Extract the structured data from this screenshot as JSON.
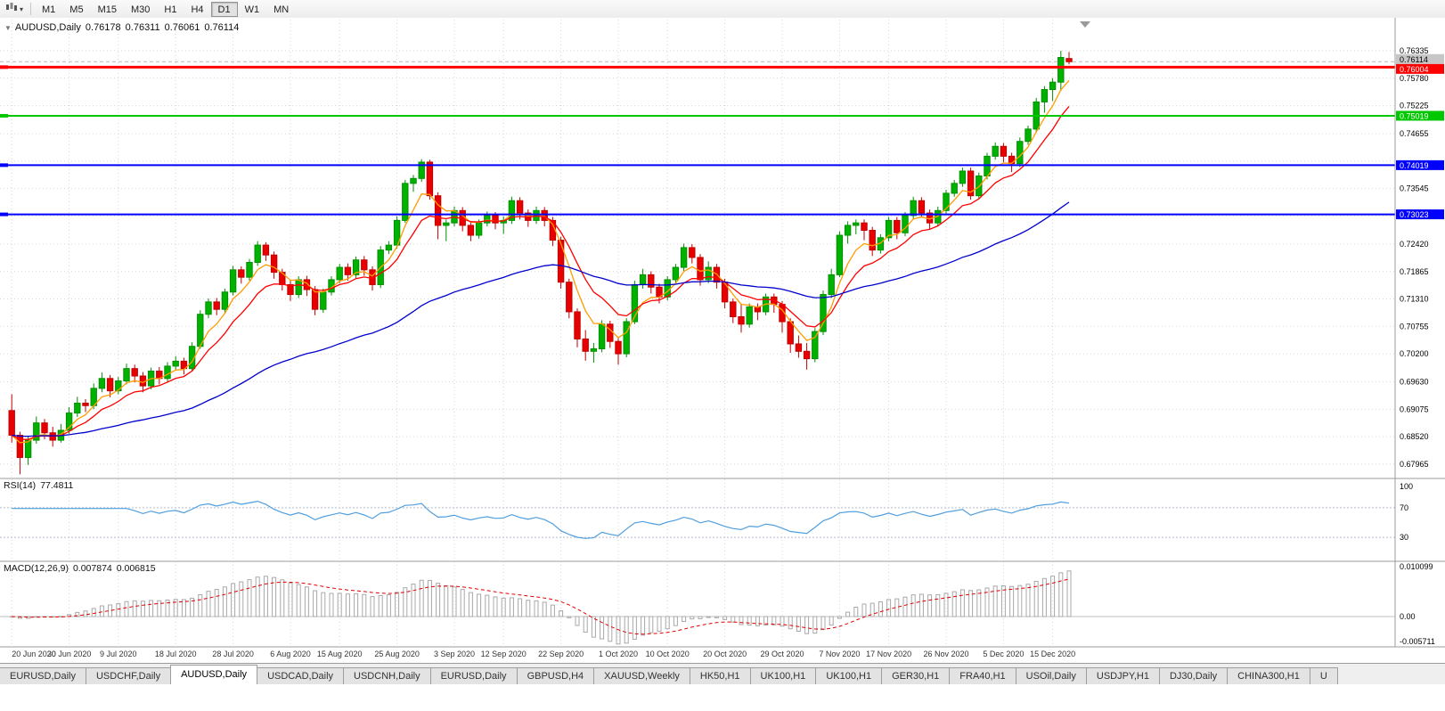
{
  "toolbar": {
    "timeframes": [
      "M1",
      "M5",
      "M15",
      "M30",
      "H1",
      "H4",
      "D1",
      "W1",
      "MN"
    ],
    "active_timeframe": "D1"
  },
  "chart_data": {
    "type": "candlestick",
    "title": {
      "toggle_icon": "▼",
      "symbol": "AUDUSD,Daily",
      "open": "0.76178",
      "high": "0.76311",
      "low": "0.76061",
      "close": "0.76114"
    },
    "colors": {
      "bull": "#00b200",
      "bull_stroke": "#008f00",
      "bear": "#e80000",
      "bear_stroke": "#bf0000",
      "grid": "#d6d6d6",
      "separator": "#9b9b9b",
      "current_price_line": "#b8b8b8",
      "rsi_line": "#4f9ede",
      "macd_bar": "#a8a8a8",
      "macd_signal": "#e00000"
    },
    "price_axis": {
      "min": 0.67965,
      "max": 0.76335,
      "labels": [
        "0.76335",
        "0.75780",
        "0.75225",
        "0.74655",
        "0.73545",
        "0.72990",
        "0.72420",
        "0.71865",
        "0.71310",
        "0.70755",
        "0.70200",
        "0.69630",
        "0.69075",
        "0.68520",
        "0.67965"
      ],
      "hidden_grid_price": 0.741
    },
    "current_price": {
      "value": 0.76114,
      "label": "0.76114",
      "badge_bg": "#c6c6c6",
      "badge_text": "#000000"
    },
    "hlines": [
      {
        "price": 0.76004,
        "label": "0.76004",
        "color": "#ff0000",
        "width": 3
      },
      {
        "price": 0.75019,
        "label": "0.75019",
        "color": "#00c800",
        "width": 2
      },
      {
        "price": 0.74019,
        "label": "0.74019",
        "color": "#0000ff",
        "width": 2
      },
      {
        "price": 0.73023,
        "label": "0.73023",
        "color": "#0000ff",
        "width": 2
      }
    ],
    "moving_averages": [
      {
        "period": 5,
        "color": "#ff9c00"
      },
      {
        "period": 10,
        "color": "#ff0000"
      },
      {
        "period": 50,
        "color": "#0000cd"
      }
    ],
    "date_labels": [
      "20 Jun 2020",
      "30 Jun 2020",
      "9 Jul 2020",
      "18 Jul 2020",
      "28 Jul 2020",
      "6 Aug 2020",
      "15 Aug 2020",
      "25 Aug 2020",
      "3 Sep 2020",
      "12 Sep 2020",
      "22 Sep 2020",
      "1 Oct 2020",
      "10 Oct 2020",
      "20 Oct 2020",
      "29 Oct 2020",
      "7 Nov 2020",
      "17 Nov 2020",
      "26 Nov 2020",
      "5 Dec 2020",
      "15 Dec 2020"
    ],
    "label_indices": [
      0,
      7,
      13,
      20,
      27,
      34,
      40,
      47,
      54,
      60,
      67,
      74,
      80,
      87,
      94,
      101,
      107,
      114,
      121,
      127
    ],
    "candles": [
      [
        0.6905,
        0.6938,
        0.684,
        0.6855
      ],
      [
        0.6855,
        0.6862,
        0.6776,
        0.681
      ],
      [
        0.681,
        0.6852,
        0.6795,
        0.6845
      ],
      [
        0.6845,
        0.6893,
        0.6838,
        0.688
      ],
      [
        0.688,
        0.6888,
        0.6847,
        0.686
      ],
      [
        0.686,
        0.6872,
        0.6832,
        0.6845
      ],
      [
        0.6845,
        0.6878,
        0.684,
        0.6865
      ],
      [
        0.6865,
        0.6912,
        0.6858,
        0.69
      ],
      [
        0.69,
        0.6933,
        0.6892,
        0.692
      ],
      [
        0.692,
        0.6928,
        0.6902,
        0.6915
      ],
      [
        0.6915,
        0.696,
        0.6908,
        0.695
      ],
      [
        0.695,
        0.6982,
        0.6942,
        0.697
      ],
      [
        0.697,
        0.6977,
        0.6932,
        0.6945
      ],
      [
        0.6945,
        0.6973,
        0.6938,
        0.6965
      ],
      [
        0.6965,
        0.7,
        0.6958,
        0.699
      ],
      [
        0.699,
        0.6998,
        0.6962,
        0.6975
      ],
      [
        0.6975,
        0.6983,
        0.6942,
        0.6955
      ],
      [
        0.6955,
        0.6992,
        0.6948,
        0.6985
      ],
      [
        0.6985,
        0.6993,
        0.6958,
        0.697
      ],
      [
        0.697,
        0.7003,
        0.6962,
        0.6995
      ],
      [
        0.6995,
        0.7015,
        0.6988,
        0.7005
      ],
      [
        0.7005,
        0.7012,
        0.6978,
        0.699
      ],
      [
        0.699,
        0.7043,
        0.6984,
        0.7035
      ],
      [
        0.7035,
        0.7108,
        0.703,
        0.71
      ],
      [
        0.71,
        0.7132,
        0.7092,
        0.7125
      ],
      [
        0.7125,
        0.7133,
        0.7098,
        0.711
      ],
      [
        0.711,
        0.7152,
        0.7103,
        0.7145
      ],
      [
        0.7145,
        0.7198,
        0.7138,
        0.719
      ],
      [
        0.719,
        0.7197,
        0.7162,
        0.7175
      ],
      [
        0.7175,
        0.7212,
        0.7168,
        0.7205
      ],
      [
        0.7205,
        0.7248,
        0.7198,
        0.724
      ],
      [
        0.724,
        0.7246,
        0.7208,
        0.722
      ],
      [
        0.722,
        0.7227,
        0.7172,
        0.7185
      ],
      [
        0.7185,
        0.7192,
        0.7148,
        0.716
      ],
      [
        0.716,
        0.7168,
        0.7127,
        0.714
      ],
      [
        0.714,
        0.7177,
        0.7133,
        0.717
      ],
      [
        0.717,
        0.7178,
        0.7137,
        0.715
      ],
      [
        0.715,
        0.7157,
        0.7098,
        0.711
      ],
      [
        0.711,
        0.7152,
        0.7103,
        0.7145
      ],
      [
        0.7145,
        0.7177,
        0.7138,
        0.717
      ],
      [
        0.717,
        0.7202,
        0.7163,
        0.7195
      ],
      [
        0.7195,
        0.7203,
        0.7168,
        0.718
      ],
      [
        0.718,
        0.7217,
        0.7173,
        0.721
      ],
      [
        0.721,
        0.7218,
        0.7178,
        0.719
      ],
      [
        0.719,
        0.7197,
        0.7148,
        0.716
      ],
      [
        0.716,
        0.7238,
        0.7153,
        0.723
      ],
      [
        0.723,
        0.7248,
        0.7222,
        0.724
      ],
      [
        0.724,
        0.7298,
        0.7233,
        0.729
      ],
      [
        0.729,
        0.7372,
        0.7285,
        0.7365
      ],
      [
        0.7365,
        0.7382,
        0.7348,
        0.7375
      ],
      [
        0.7375,
        0.7414,
        0.7368,
        0.7408
      ],
      [
        0.7408,
        0.7413,
        0.7332,
        0.734
      ],
      [
        0.734,
        0.7347,
        0.7252,
        0.728
      ],
      [
        0.728,
        0.7292,
        0.7248,
        0.7285
      ],
      [
        0.7285,
        0.7318,
        0.7278,
        0.731
      ],
      [
        0.731,
        0.7317,
        0.7268,
        0.728
      ],
      [
        0.728,
        0.7288,
        0.7248,
        0.726
      ],
      [
        0.726,
        0.7292,
        0.7253,
        0.7285
      ],
      [
        0.7285,
        0.7308,
        0.7278,
        0.73
      ],
      [
        0.73,
        0.7307,
        0.7272,
        0.7285
      ],
      [
        0.7285,
        0.7298,
        0.7263,
        0.729
      ],
      [
        0.729,
        0.7338,
        0.7283,
        0.733
      ],
      [
        0.733,
        0.7337,
        0.7292,
        0.7305
      ],
      [
        0.7305,
        0.7312,
        0.7277,
        0.729
      ],
      [
        0.729,
        0.7318,
        0.7283,
        0.731
      ],
      [
        0.731,
        0.7317,
        0.7278,
        0.729
      ],
      [
        0.729,
        0.7297,
        0.7238,
        0.725
      ],
      [
        0.725,
        0.7257,
        0.7152,
        0.7165
      ],
      [
        0.7165,
        0.7172,
        0.7092,
        0.7105
      ],
      [
        0.7105,
        0.7112,
        0.7033,
        0.705
      ],
      [
        0.705,
        0.7068,
        0.7006,
        0.7025
      ],
      [
        0.7025,
        0.7042,
        0.7002,
        0.703
      ],
      [
        0.703,
        0.7088,
        0.7023,
        0.708
      ],
      [
        0.708,
        0.7087,
        0.7032,
        0.7045
      ],
      [
        0.7045,
        0.7052,
        0.6998,
        0.702
      ],
      [
        0.702,
        0.7092,
        0.7013,
        0.7085
      ],
      [
        0.7085,
        0.7168,
        0.708,
        0.716
      ],
      [
        0.716,
        0.7192,
        0.7152,
        0.718
      ],
      [
        0.718,
        0.7187,
        0.7142,
        0.7155
      ],
      [
        0.7155,
        0.7162,
        0.7122,
        0.7135
      ],
      [
        0.7135,
        0.7177,
        0.7128,
        0.717
      ],
      [
        0.717,
        0.7202,
        0.7163,
        0.7195
      ],
      [
        0.7195,
        0.7243,
        0.7188,
        0.7235
      ],
      [
        0.7235,
        0.7242,
        0.7203,
        0.7215
      ],
      [
        0.7215,
        0.7222,
        0.7158,
        0.717
      ],
      [
        0.717,
        0.7207,
        0.7163,
        0.7195
      ],
      [
        0.7195,
        0.7202,
        0.7152,
        0.7165
      ],
      [
        0.7165,
        0.7172,
        0.7112,
        0.7125
      ],
      [
        0.7125,
        0.7132,
        0.7082,
        0.7095
      ],
      [
        0.7095,
        0.7122,
        0.7063,
        0.708
      ],
      [
        0.708,
        0.7122,
        0.7073,
        0.7115
      ],
      [
        0.7115,
        0.7122,
        0.7088,
        0.7105
      ],
      [
        0.7105,
        0.7142,
        0.7098,
        0.7135
      ],
      [
        0.7135,
        0.7142,
        0.7103,
        0.712
      ],
      [
        0.712,
        0.7127,
        0.7063,
        0.7085
      ],
      [
        0.7085,
        0.7092,
        0.7022,
        0.704
      ],
      [
        0.704,
        0.7057,
        0.7012,
        0.7025
      ],
      [
        0.7025,
        0.7042,
        0.6988,
        0.701
      ],
      [
        0.701,
        0.7072,
        0.7003,
        0.7065
      ],
      [
        0.7065,
        0.7148,
        0.7058,
        0.714
      ],
      [
        0.714,
        0.7192,
        0.7133,
        0.718
      ],
      [
        0.718,
        0.7268,
        0.7175,
        0.726
      ],
      [
        0.726,
        0.7288,
        0.7243,
        0.728
      ],
      [
        0.728,
        0.7292,
        0.7262,
        0.7285
      ],
      [
        0.7285,
        0.7292,
        0.725,
        0.727
      ],
      [
        0.727,
        0.7277,
        0.7218,
        0.723
      ],
      [
        0.723,
        0.7262,
        0.7223,
        0.7255
      ],
      [
        0.7255,
        0.7297,
        0.7248,
        0.729
      ],
      [
        0.729,
        0.7297,
        0.7252,
        0.7265
      ],
      [
        0.7265,
        0.7307,
        0.7258,
        0.73
      ],
      [
        0.73,
        0.7338,
        0.7293,
        0.733
      ],
      [
        0.733,
        0.7337,
        0.7297,
        0.7305
      ],
      [
        0.7305,
        0.7312,
        0.7272,
        0.7285
      ],
      [
        0.7285,
        0.7318,
        0.7278,
        0.731
      ],
      [
        0.731,
        0.7352,
        0.7303,
        0.7345
      ],
      [
        0.7345,
        0.7372,
        0.7338,
        0.7365
      ],
      [
        0.7365,
        0.7397,
        0.7358,
        0.739
      ],
      [
        0.739,
        0.7397,
        0.7332,
        0.734
      ],
      [
        0.734,
        0.7387,
        0.7333,
        0.738
      ],
      [
        0.738,
        0.7427,
        0.7373,
        0.742
      ],
      [
        0.742,
        0.7448,
        0.7413,
        0.744
      ],
      [
        0.744,
        0.7447,
        0.7408,
        0.742
      ],
      [
        0.742,
        0.7427,
        0.7388,
        0.7405
      ],
      [
        0.7405,
        0.7458,
        0.7398,
        0.745
      ],
      [
        0.745,
        0.7482,
        0.7443,
        0.7475
      ],
      [
        0.7475,
        0.7538,
        0.7468,
        0.753
      ],
      [
        0.753,
        0.7562,
        0.7508,
        0.7555
      ],
      [
        0.7555,
        0.7578,
        0.7532,
        0.757
      ],
      [
        0.757,
        0.76335,
        0.7552,
        0.762
      ],
      [
        0.76178,
        0.76311,
        0.76061,
        0.76114
      ]
    ],
    "indicators": {
      "rsi": {
        "label": "RSI(14)",
        "value": "77.4811",
        "period": 14,
        "levels": [
          70,
          30
        ],
        "axis_labels": [
          "100",
          "70",
          "30"
        ]
      },
      "macd": {
        "label": "MACD(12,26,9)",
        "value_main": "0.007874",
        "value_signal": "0.006815",
        "fast": 12,
        "slow": 26,
        "signal": 9,
        "axis_labels": [
          "0.010099",
          "0.00",
          "-0.005711"
        ]
      }
    }
  },
  "tab_bar": {
    "active_index": 2,
    "tabs": [
      {
        "label": "EURUSD,Daily"
      },
      {
        "label": "USDCHF,Daily"
      },
      {
        "label": "AUDUSD,Daily"
      },
      {
        "label": "USDCAD,Daily"
      },
      {
        "label": "USDCNH,Daily"
      },
      {
        "label": "EURUSD,Daily"
      },
      {
        "label": "GBPUSD,H4"
      },
      {
        "label": "XAUUSD,Weekly"
      },
      {
        "label": "HK50,H1"
      },
      {
        "label": "UK100,H1"
      },
      {
        "label": "UK100,H1"
      },
      {
        "label": "GER30,H1"
      },
      {
        "label": "FRA40,H1"
      },
      {
        "label": "USOil,Daily"
      },
      {
        "label": "USDJPY,H1"
      },
      {
        "label": "DJ30,Daily"
      },
      {
        "label": "CHINA300,H1"
      },
      {
        "label": "U"
      }
    ]
  }
}
